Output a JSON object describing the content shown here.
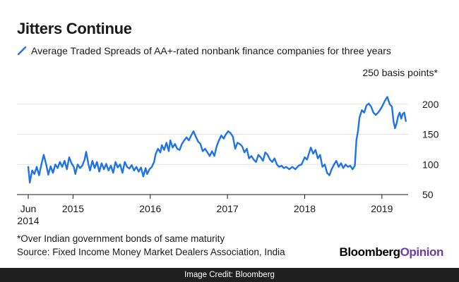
{
  "chart_data": {
    "type": "line",
    "title": "Jitters Continue",
    "series": [
      {
        "name": "Average Traded Spreads of AA+-rated nonbank finance companies for three years",
        "color": "#1e73e6",
        "points": [
          [
            2014.42,
            96
          ],
          [
            2014.44,
            70
          ],
          [
            2014.47,
            90
          ],
          [
            2014.5,
            84
          ],
          [
            2014.53,
            96
          ],
          [
            2014.56,
            82
          ],
          [
            2014.59,
            100
          ],
          [
            2014.62,
            116
          ],
          [
            2014.65,
            101
          ],
          [
            2014.68,
            83
          ],
          [
            2014.71,
            97
          ],
          [
            2014.74,
            86
          ],
          [
            2014.77,
            100
          ],
          [
            2014.8,
            94
          ],
          [
            2014.83,
            104
          ],
          [
            2014.86,
            96
          ],
          [
            2014.89,
            106
          ],
          [
            2014.92,
            92
          ],
          [
            2014.95,
            112
          ],
          [
            2014.98,
            102
          ],
          [
            2015.01,
            96
          ],
          [
            2015.03,
            84
          ],
          [
            2015.06,
            100
          ],
          [
            2015.09,
            94
          ],
          [
            2015.12,
            98
          ],
          [
            2015.15,
            108
          ],
          [
            2015.17,
            121
          ],
          [
            2015.2,
            100
          ],
          [
            2015.22,
            90
          ],
          [
            2015.25,
            106
          ],
          [
            2015.28,
            94
          ],
          [
            2015.31,
            104
          ],
          [
            2015.34,
            88
          ],
          [
            2015.37,
            102
          ],
          [
            2015.4,
            92
          ],
          [
            2015.43,
            101
          ],
          [
            2015.46,
            90
          ],
          [
            2015.49,
            98
          ],
          [
            2015.52,
            86
          ],
          [
            2015.55,
            104
          ],
          [
            2015.58,
            95
          ],
          [
            2015.61,
            100
          ],
          [
            2015.64,
            86
          ],
          [
            2015.67,
            104
          ],
          [
            2015.7,
            96
          ],
          [
            2015.73,
            93
          ],
          [
            2015.76,
            99
          ],
          [
            2015.79,
            90
          ],
          [
            2015.82,
            96
          ],
          [
            2015.85,
            88
          ],
          [
            2015.88,
            95
          ],
          [
            2015.91,
            80
          ],
          [
            2015.94,
            94
          ],
          [
            2015.96,
            84
          ],
          [
            2015.99,
            92
          ],
          [
            2016.02,
            96
          ],
          [
            2016.05,
            104
          ],
          [
            2016.07,
            117
          ],
          [
            2016.1,
            126
          ],
          [
            2016.13,
            120
          ],
          [
            2016.15,
            132
          ],
          [
            2016.18,
            124
          ],
          [
            2016.21,
            136
          ],
          [
            2016.24,
            122
          ],
          [
            2016.26,
            140
          ],
          [
            2016.29,
            128
          ],
          [
            2016.32,
            134
          ],
          [
            2016.35,
            126
          ],
          [
            2016.38,
            124
          ],
          [
            2016.41,
            134
          ],
          [
            2016.44,
            140
          ],
          [
            2016.47,
            145
          ],
          [
            2016.5,
            140
          ],
          [
            2016.53,
            148
          ],
          [
            2016.56,
            155
          ],
          [
            2016.59,
            146
          ],
          [
            2016.62,
            138
          ],
          [
            2016.65,
            134
          ],
          [
            2016.68,
            122
          ],
          [
            2016.71,
            126
          ],
          [
            2016.74,
            120
          ],
          [
            2016.77,
            114
          ],
          [
            2016.8,
            122
          ],
          [
            2016.83,
            114
          ],
          [
            2016.86,
            130
          ],
          [
            2016.89,
            140
          ],
          [
            2016.92,
            148
          ],
          [
            2016.95,
            143
          ],
          [
            2016.98,
            150
          ],
          [
            2017.01,
            155
          ],
          [
            2017.04,
            152
          ],
          [
            2017.07,
            146
          ],
          [
            2017.1,
            126
          ],
          [
            2017.13,
            136
          ],
          [
            2017.16,
            134
          ],
          [
            2017.19,
            130
          ],
          [
            2017.22,
            120
          ],
          [
            2017.25,
            126
          ],
          [
            2017.28,
            110
          ],
          [
            2017.31,
            114
          ],
          [
            2017.34,
            108
          ],
          [
            2017.37,
            104
          ],
          [
            2017.4,
            116
          ],
          [
            2017.43,
            112
          ],
          [
            2017.46,
            106
          ],
          [
            2017.49,
            120
          ],
          [
            2017.52,
            116
          ],
          [
            2017.55,
            108
          ],
          [
            2017.58,
            104
          ],
          [
            2017.61,
            110
          ],
          [
            2017.64,
            100
          ],
          [
            2017.67,
            96
          ],
          [
            2017.7,
            98
          ],
          [
            2017.73,
            94
          ],
          [
            2017.76,
            96
          ],
          [
            2017.8,
            92
          ],
          [
            2017.84,
            96
          ],
          [
            2017.88,
            92
          ],
          [
            2017.92,
            98
          ],
          [
            2017.96,
            100
          ],
          [
            2018.0,
            112
          ],
          [
            2018.03,
            108
          ],
          [
            2018.06,
            120
          ],
          [
            2018.08,
            128
          ],
          [
            2018.11,
            118
          ],
          [
            2018.14,
            124
          ],
          [
            2018.17,
            110
          ],
          [
            2018.2,
            116
          ],
          [
            2018.23,
            96
          ],
          [
            2018.26,
            100
          ],
          [
            2018.29,
            86
          ],
          [
            2018.32,
            82
          ],
          [
            2018.35,
            92
          ],
          [
            2018.38,
            100
          ],
          [
            2018.41,
            106
          ],
          [
            2018.44,
            96
          ],
          [
            2018.47,
            102
          ],
          [
            2018.5,
            94
          ],
          [
            2018.53,
            100
          ],
          [
            2018.56,
            96
          ],
          [
            2018.59,
            98
          ],
          [
            2018.62,
            92
          ],
          [
            2018.65,
            98
          ],
          [
            2018.67,
            140
          ],
          [
            2018.69,
            155
          ],
          [
            2018.71,
            178
          ],
          [
            2018.74,
            190
          ],
          [
            2018.77,
            186
          ],
          [
            2018.8,
            198
          ],
          [
            2018.83,
            201
          ],
          [
            2018.86,
            196
          ],
          [
            2018.89,
            186
          ],
          [
            2018.92,
            182
          ],
          [
            2018.95,
            186
          ],
          [
            2018.98,
            191
          ],
          [
            2019.01,
            198
          ],
          [
            2019.04,
            206
          ],
          [
            2019.07,
            212
          ],
          [
            2019.1,
            200
          ],
          [
            2019.13,
            196
          ],
          [
            2019.15,
            172
          ],
          [
            2019.17,
            160
          ],
          [
            2019.19,
            168
          ],
          [
            2019.21,
            180
          ],
          [
            2019.23,
            186
          ],
          [
            2019.25,
            176
          ],
          [
            2019.27,
            184
          ],
          [
            2019.29,
            186
          ],
          [
            2019.31,
            172
          ]
        ]
      }
    ],
    "x_ticks": [
      {
        "value": 2014.42,
        "label": "Jun",
        "label2": "2014"
      },
      {
        "value": 2015.0,
        "label": "2015"
      },
      {
        "value": 2016.0,
        "label": "2016"
      },
      {
        "value": 2017.0,
        "label": "2017"
      },
      {
        "value": 2018.0,
        "label": "2018"
      },
      {
        "value": 2019.0,
        "label": "2019"
      }
    ],
    "y_ticks": [
      50,
      100,
      150,
      200
    ],
    "ylim": [
      50,
      250
    ],
    "xlim": [
      2014.42,
      2019.34
    ],
    "ylabel": "250 basis points*",
    "grid": true
  },
  "footnote": "*Over Indian government bonds of same maturity",
  "source": "Source: Fixed Income Money Market Dealers Association, India",
  "brand": {
    "part1": "Bloomberg",
    "part2": "Opinion"
  },
  "credit": "Image Credit: Bloomberg"
}
